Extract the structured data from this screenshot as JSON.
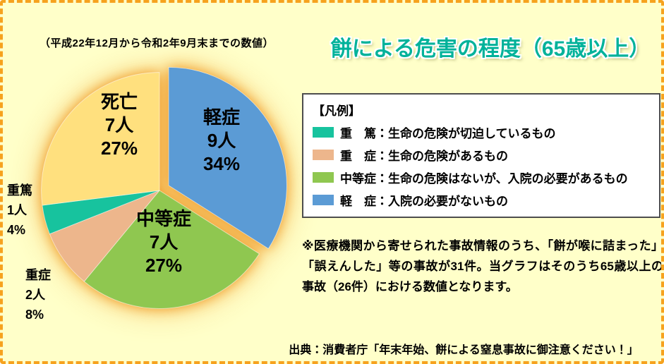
{
  "page": {
    "background_color": "#FFFFC9",
    "border_color": "#F6A21E",
    "period_note": "（平成22年12月から令和2年9月末までの数値）",
    "title": "餅による危害の程度（65歳以上）",
    "title_color": "#00B29A",
    "note": "※医療機関から寄せられた事故情報のうち、「餅が喉に詰まった」「誤えんした」等の事故が31件。当グラフはそのうち65歳以上の事故（26件）における数値となります。",
    "source": "出典：消費者庁「年末年始、餅による窒息事故に御注意ください！」"
  },
  "legend": {
    "title": "【凡例】",
    "items": [
      {
        "label": "重　篤：生命の危険が切迫しているもの",
        "color": "#17C39E"
      },
      {
        "label": "重　症：生命の危険があるもの",
        "color": "#EDB68C"
      },
      {
        "label": "中等症：生命の危険はないが、入院の必要があるもの",
        "color": "#8FC750"
      },
      {
        "label": "軽　症：入院の必要がないもの",
        "color": "#5B9BD5"
      }
    ]
  },
  "chart_data": {
    "type": "pie",
    "title": "餅による危害の程度（65歳以上）",
    "start_angle_deg": 0,
    "direction": "clockwise",
    "legend_position": "right",
    "slices": [
      {
        "name": "軽症",
        "count": 9,
        "count_label": "9人",
        "percent": 34,
        "percent_label": "34%",
        "color": "#5B9BD5",
        "explode": true
      },
      {
        "name": "中等症",
        "count": 7,
        "count_label": "7人",
        "percent": 27,
        "percent_label": "27%",
        "color": "#8FC750",
        "explode": false
      },
      {
        "name": "重症",
        "count": 2,
        "count_label": "2人",
        "percent": 8,
        "percent_label": "8%",
        "color": "#EDB68C",
        "explode": false
      },
      {
        "name": "重篤",
        "count": 1,
        "count_label": "1人",
        "percent": 4,
        "percent_label": "4%",
        "color": "#17C39E",
        "explode": false
      },
      {
        "name": "死亡",
        "count": 7,
        "count_label": "7人",
        "percent": 27,
        "percent_label": "27%",
        "color": "#FFE07E",
        "explode": false
      }
    ]
  }
}
